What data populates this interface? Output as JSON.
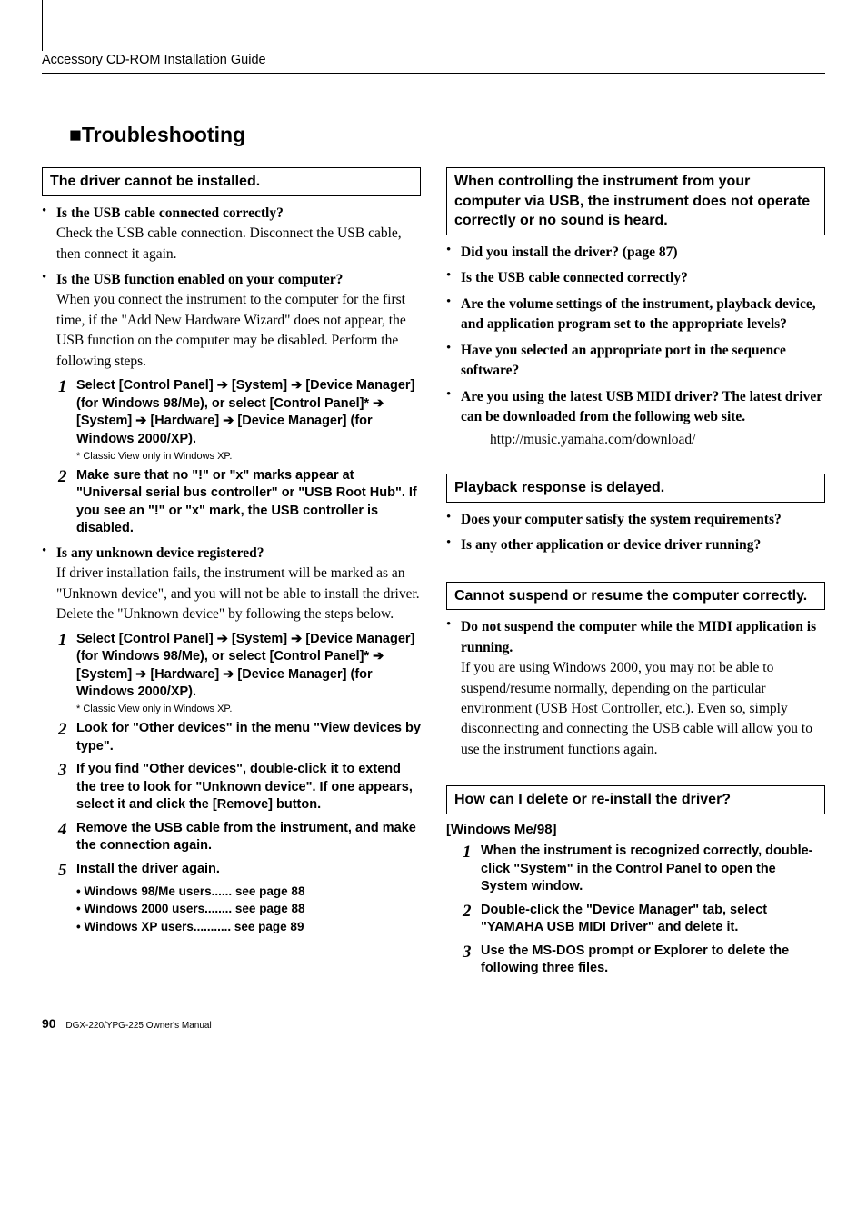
{
  "running_title": "Accessory CD-ROM Installation Guide",
  "heading_prefix": "■",
  "heading": "Troubleshooting",
  "left": {
    "box1": "The driver cannot be installed.",
    "b1_head": "Is the USB cable connected correctly?",
    "b1_text": "Check the USB cable connection. Disconnect the USB cable, then connect it again.",
    "b2_head": "Is the USB function enabled on your computer?",
    "b2_text": "When you connect the instrument to the computer for the first time, if the \"Add New Hardware Wizard\" does not appear, the USB function on the computer may be disabled. Perform the following steps.",
    "s1_num": "1",
    "s1_text": "Select [Control Panel] ➔ [System] ➔ [Device Manager] (for Windows 98/Me), or select [Control Panel]* ➔ [System] ➔ [Hardware] ➔ [Device Manager] (for Windows 2000/XP).",
    "s1_foot": "* Classic View only in Windows XP.",
    "s2_num": "2",
    "s2_text": "Make sure that no \"!\" or \"x\" marks appear at \"Universal serial bus controller\" or \"USB Root Hub\". If you see an \"!\" or \"x\" mark, the USB controller is disabled.",
    "b3_head": "Is any unknown device registered?",
    "b3_text": "If driver installation fails, the instrument will be marked as an \"Unknown device\", and you will not be able to install the driver. Delete the \"Unknown device\" by following the steps below.",
    "s3_num": "1",
    "s3_text": "Select [Control Panel] ➔ [System] ➔ [Device Manager] (for Windows 98/Me), or select [Control Panel]* ➔ [System] ➔ [Hardware] ➔ [Device Manager] (for Windows 2000/XP).",
    "s3_foot": "* Classic View only in Windows XP.",
    "s4_num": "2",
    "s4_text": "Look for \"Other devices\" in the menu \"View devices by type\".",
    "s5_num": "3",
    "s5_text": "If you find \"Other devices\", double-click it to extend the tree to look for \"Unknown device\". If one appears, select it and click the [Remove] button.",
    "s6_num": "4",
    "s6_text": "Remove the USB cable from the instrument, and make the connection again.",
    "s7_num": "5",
    "s7_text": "Install the driver again.",
    "see1": "• Windows 98/Me users...... see page 88",
    "see2": "• Windows 2000 users........ see page 88",
    "see3": "• Windows XP users........... see page 89"
  },
  "right": {
    "box1": "When controlling the instrument from your computer via USB, the instrument does not operate correctly or no sound is heard.",
    "b1_head": "Did you install the driver? (page 87)",
    "b2_head": "Is the USB cable connected correctly?",
    "b3_head": "Are the volume settings of the instrument, playback device, and application program set to the appropriate levels?",
    "b4_head": "Have you selected an appropriate port in the sequence software?",
    "b5_head": "Are you using the latest USB MIDI driver? The latest driver can be downloaded from the following web site.",
    "b5_url": "http://music.yamaha.com/download/",
    "box2": "Playback response is delayed.",
    "b6_head": "Does your computer satisfy the system requirements?",
    "b7_head": "Is any other application or device driver running?",
    "box3": "Cannot suspend or resume the computer correctly.",
    "b8_head": "Do not suspend the computer while the MIDI application is running.",
    "b8_text": "If you are using Windows 2000, you may not be able to suspend/resume normally, depending on the particular environment (USB Host Controller, etc.). Even so, simply disconnecting and connecting the USB cable will allow you to use the instrument functions again.",
    "box4": "How can I delete or re-install the driver?",
    "os_title": "[Windows Me/98]",
    "s1_num": "1",
    "s1_text": "When the instrument is recognized correctly, double-click \"System\" in the Control Panel to open the System window.",
    "s2_num": "2",
    "s2_text": "Double-click the \"Device Manager\" tab, select \"YAMAHA USB MIDI Driver\" and delete it.",
    "s3_num": "3",
    "s3_text": "Use the MS-DOS prompt or Explorer to delete the following three files."
  },
  "footer_pnum": "90",
  "footer_text": "DGX-220/YPG-225  Owner's Manual"
}
